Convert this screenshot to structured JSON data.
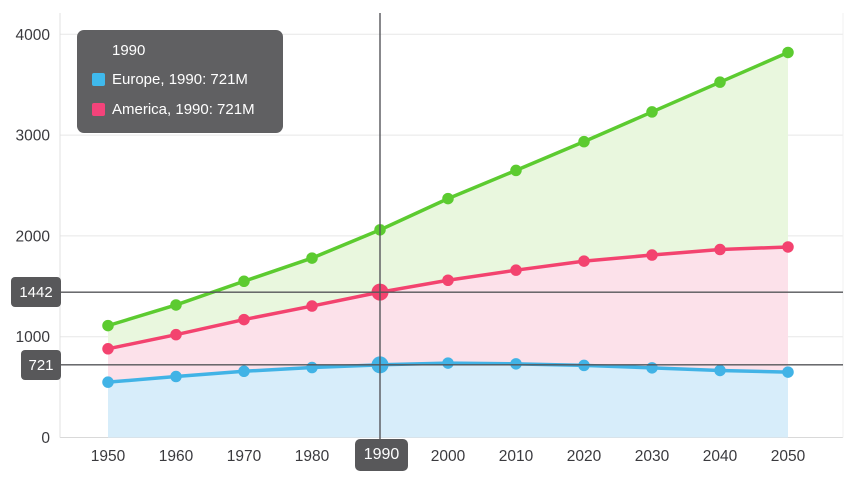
{
  "chart": {
    "tooltip": {
      "title": "1990",
      "rows": [
        {
          "series": "Europe",
          "swatch_color": "#3fb9ec",
          "text": "Europe, 1990: 721M"
        },
        {
          "series": "America",
          "swatch_color": "#f4437a",
          "text": "America, 1990: 721M"
        }
      ]
    },
    "crosshair": {
      "year": 1990,
      "x_label": "1990",
      "y_labels": [
        {
          "text": "1442",
          "value": 1442
        },
        {
          "text": "721",
          "value": 721
        }
      ]
    }
  },
  "chart_data": {
    "type": "area",
    "stacked": true,
    "unit": "M",
    "title": "",
    "xlabel": "",
    "ylabel": "",
    "x": [
      1950,
      1960,
      1970,
      1980,
      1990,
      2000,
      2010,
      2020,
      2030,
      2040,
      2050
    ],
    "x_tick_labels": [
      "1950",
      "1960",
      "1970",
      "1980",
      "1990",
      "2000",
      "2010",
      "2020",
      "2030",
      "2040",
      "2050"
    ],
    "y_ticks": [
      0,
      1000,
      2000,
      3000,
      4000
    ],
    "y_tick_labels": [
      "0",
      "1000",
      "2000",
      "3000",
      "4000"
    ],
    "ylim": [
      0,
      4200
    ],
    "grid": "horizontal-only",
    "legend_position": "none",
    "series": [
      {
        "slug": "europe",
        "name": "Europe",
        "color": "#41b3e6",
        "fill_color": "#d7edfa",
        "values": [
          549,
          605,
          657,
          694,
          721,
          738,
          731,
          715,
          691,
          665,
          649
        ],
        "stack_top": [
          549,
          605,
          657,
          694,
          721,
          738,
          731,
          715,
          691,
          665,
          649
        ]
      },
      {
        "slug": "america",
        "name": "America",
        "color": "#f3436f",
        "fill_color": "#fce1ea",
        "values": [
          331,
          415,
          513,
          610,
          721,
          822,
          929,
          1035,
          1119,
          1200,
          1241
        ],
        "stack_top": [
          880,
          1020,
          1170,
          1304,
          1442,
          1560,
          1660,
          1750,
          1810,
          1865,
          1890
        ]
      },
      {
        "slug": "series3",
        "name": "",
        "note": "series label not visible in screenshot",
        "color": "#5ccb30",
        "fill_color": "#e9f7de",
        "values": [
          230,
          295,
          380,
          476,
          618,
          810,
          990,
          1185,
          1420,
          1660,
          1930
        ],
        "stack_top": [
          1110,
          1315,
          1550,
          1780,
          2060,
          2370,
          2650,
          2935,
          3230,
          3525,
          3820
        ]
      }
    ],
    "highlight": {
      "hover_year": 1990,
      "hover_series": [
        "europe",
        "america"
      ],
      "crosshair_values": [
        1442,
        721
      ]
    }
  }
}
